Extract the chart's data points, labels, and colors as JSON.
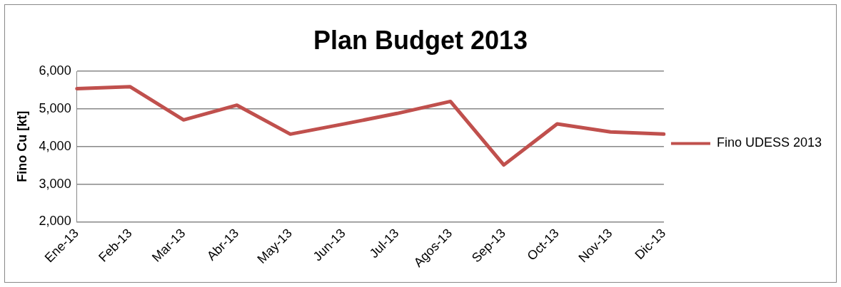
{
  "chart_data": {
    "type": "line",
    "title": "Plan Budget 2013",
    "ylabel": "Fino Cu [kt]",
    "categories": [
      "Ene-13",
      "Feb-13",
      "Mar-13",
      "Abr-13",
      "May-13",
      "Jun-13",
      "Jul-13",
      "Agos-13",
      "Sep-13",
      "Oct-13",
      "Nov-13",
      "Dic-13"
    ],
    "series": [
      {
        "name": "Fino UDESS 2013",
        "color": "#c0504d",
        "values": [
          5540,
          5590,
          4710,
          5100,
          4330,
          4600,
          4880,
          5200,
          3510,
          4600,
          4390,
          4330
        ]
      }
    ],
    "ylim": [
      2000,
      6000
    ],
    "yticks": [
      {
        "value": 2000,
        "label": "2,000"
      },
      {
        "value": 3000,
        "label": "3,000"
      },
      {
        "value": 4000,
        "label": "4,000"
      },
      {
        "value": 5000,
        "label": "5,000"
      },
      {
        "value": 6000,
        "label": "6,000"
      }
    ],
    "grid": "y",
    "legend": "right",
    "marker": "none",
    "line_style": "solid"
  }
}
